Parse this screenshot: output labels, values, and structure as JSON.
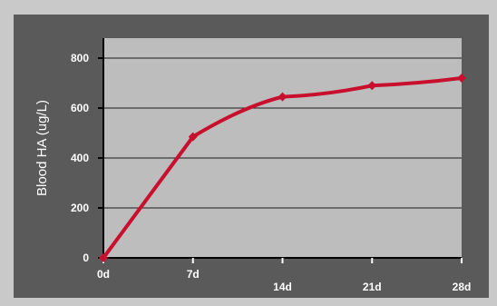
{
  "chart_data": {
    "type": "line",
    "title": "",
    "xlabel": "",
    "ylabel": "Blood HA (ug/L)",
    "x_ticks": [
      "0d",
      "7d",
      "14d",
      "21d",
      "28d"
    ],
    "y_ticks": [
      "0",
      "200",
      "400",
      "600",
      "800"
    ],
    "ylim": [
      0,
      880
    ],
    "xlim": [
      0,
      28
    ],
    "grid": true,
    "series": [
      {
        "name": "",
        "color": "#c8102e",
        "x": [
          0,
          7,
          14,
          21,
          28
        ],
        "y": [
          0,
          485,
          645,
          690,
          720
        ],
        "marker": "diamond"
      }
    ]
  },
  "colors": {
    "background": "#c9c9c9",
    "frame": "#5a5a5a",
    "plot_area": "#bdbdbd",
    "gridline": "#1a1a1a",
    "text": "#ffffff",
    "line": "#c8102e"
  }
}
